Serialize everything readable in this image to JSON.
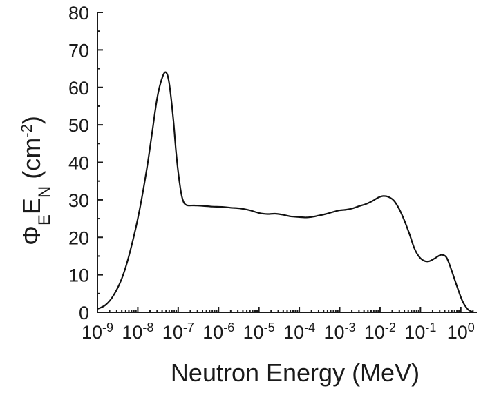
{
  "chart_data": {
    "type": "line",
    "title": "",
    "xlabel": "Neutron Energy (MeV)",
    "ylabel": "Φ_E E_N (cm^-2)",
    "ylabel_parts": {
      "base1": "Φ",
      "sub1": "E",
      "base2": "E",
      "sub2": "N",
      "unit_open": " (cm",
      "sup": "-2",
      "unit_close": ")"
    },
    "xscale": "log",
    "xlim": [
      1e-09,
      2.5
    ],
    "ylim": [
      0,
      80
    ],
    "grid": false,
    "x_ticks": [
      {
        "value": 1e-09,
        "base": "10",
        "exp": "-9"
      },
      {
        "value": 1e-08,
        "base": "10",
        "exp": "-8"
      },
      {
        "value": 1e-07,
        "base": "10",
        "exp": "-7"
      },
      {
        "value": 1e-06,
        "base": "10",
        "exp": "-6"
      },
      {
        "value": 1e-05,
        "base": "10",
        "exp": "-5"
      },
      {
        "value": 0.0001,
        "base": "10",
        "exp": "-4"
      },
      {
        "value": 0.001,
        "base": "10",
        "exp": "-3"
      },
      {
        "value": 0.01,
        "base": "10",
        "exp": "-2"
      },
      {
        "value": 0.1,
        "base": "10",
        "exp": "-1"
      },
      {
        "value": 1,
        "base": "10",
        "exp": "0"
      }
    ],
    "y_ticks": [
      0,
      10,
      20,
      30,
      40,
      50,
      60,
      70,
      80
    ],
    "series": [
      {
        "color": "#111111",
        "points": [
          [
            1e-09,
            0.9
          ],
          [
            1.6e-09,
            2
          ],
          [
            2.5e-09,
            4.5
          ],
          [
            4e-09,
            9
          ],
          [
            6e-09,
            15
          ],
          [
            1e-08,
            25
          ],
          [
            1.6e-08,
            37
          ],
          [
            2.2e-08,
            47
          ],
          [
            3e-08,
            57
          ],
          [
            4e-08,
            62.5
          ],
          [
            5e-08,
            64
          ],
          [
            6e-08,
            61
          ],
          [
            7.5e-08,
            52
          ],
          [
            9e-08,
            42
          ],
          [
            1.1e-07,
            34
          ],
          [
            1.3e-07,
            30
          ],
          [
            1.6e-07,
            28.6
          ],
          [
            2.5e-07,
            28.5
          ],
          [
            4e-07,
            28.4
          ],
          [
            7e-07,
            28.2
          ],
          [
            1.3e-06,
            28.1
          ],
          [
            2e-06,
            27.9
          ],
          [
            3.5e-06,
            27.7
          ],
          [
            6e-06,
            27.2
          ],
          [
            1e-05,
            26.5
          ],
          [
            1.6e-05,
            26.2
          ],
          [
            2.5e-05,
            26.3
          ],
          [
            4e-05,
            26.0
          ],
          [
            6e-05,
            25.6
          ],
          [
            0.0001,
            25.4
          ],
          [
            0.00015,
            25.3
          ],
          [
            0.00022,
            25.5
          ],
          [
            0.0003,
            25.8
          ],
          [
            0.00045,
            26.2
          ],
          [
            0.0007,
            26.8
          ],
          [
            0.001,
            27.2
          ],
          [
            0.0015,
            27.4
          ],
          [
            0.0022,
            27.8
          ],
          [
            0.003,
            28.3
          ],
          [
            0.0045,
            28.9
          ],
          [
            0.0065,
            29.7
          ],
          [
            0.009,
            30.6
          ],
          [
            0.012,
            31.0
          ],
          [
            0.016,
            30.8
          ],
          [
            0.022,
            29.8
          ],
          [
            0.03,
            27.5
          ],
          [
            0.04,
            24.5
          ],
          [
            0.055,
            20.5
          ],
          [
            0.07,
            17.2
          ],
          [
            0.09,
            15.0
          ],
          [
            0.12,
            13.8
          ],
          [
            0.16,
            13.6
          ],
          [
            0.22,
            14.3
          ],
          [
            0.3,
            15.2
          ],
          [
            0.36,
            15.3
          ],
          [
            0.45,
            14.5
          ],
          [
            0.6,
            11.0
          ],
          [
            0.8,
            7.0
          ],
          [
            1.1,
            3.0
          ],
          [
            1.5,
            0.8
          ],
          [
            2.0,
            0.1
          ]
        ]
      }
    ]
  }
}
